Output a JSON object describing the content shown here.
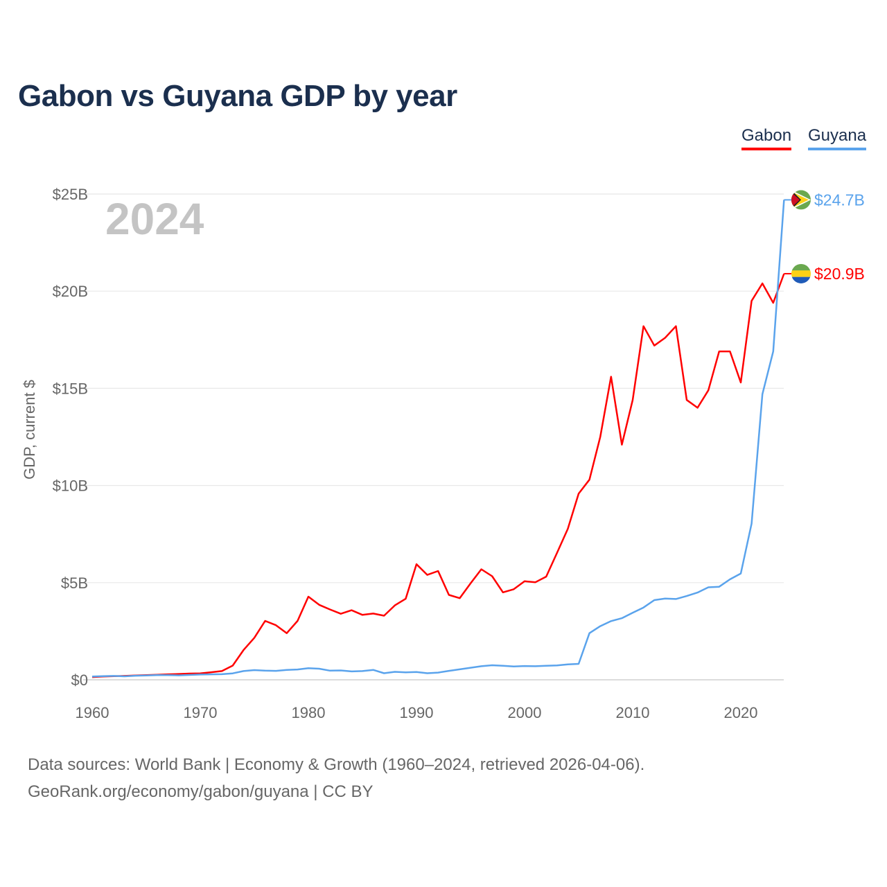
{
  "title": "Gabon vs Guyana GDP by year",
  "chart_data": {
    "type": "line",
    "title": "Gabon vs Guyana GDP by year",
    "xlabel": "",
    "ylabel": "GDP, current $",
    "xlim": [
      1960,
      2024
    ],
    "ylim": [
      0,
      25
    ],
    "x_ticks": [
      "1960",
      "1970",
      "1980",
      "1990",
      "2000",
      "2010",
      "2020"
    ],
    "y_ticks": [
      "$0",
      "$5B",
      "$10B",
      "$15B",
      "$20B",
      "$25B"
    ],
    "grid": true,
    "legend_position": "top-right",
    "current_year_label": "2024",
    "x": [
      1960,
      1961,
      1962,
      1963,
      1964,
      1965,
      1966,
      1967,
      1968,
      1969,
      1970,
      1971,
      1972,
      1973,
      1974,
      1975,
      1976,
      1977,
      1978,
      1979,
      1980,
      1981,
      1982,
      1983,
      1984,
      1985,
      1986,
      1987,
      1988,
      1989,
      1990,
      1991,
      1992,
      1993,
      1994,
      1995,
      1996,
      1997,
      1998,
      1999,
      2000,
      2001,
      2002,
      2003,
      2004,
      2005,
      2006,
      2007,
      2008,
      2009,
      2010,
      2011,
      2012,
      2013,
      2014,
      2015,
      2016,
      2017,
      2018,
      2019,
      2020,
      2021,
      2022,
      2023,
      2024
    ],
    "series": [
      {
        "name": "Gabon",
        "color": "#ff0000",
        "end_label": "$20.9B",
        "values": [
          0.14,
          0.17,
          0.19,
          0.2,
          0.22,
          0.24,
          0.26,
          0.28,
          0.3,
          0.32,
          0.33,
          0.39,
          0.45,
          0.73,
          1.53,
          2.16,
          3.03,
          2.81,
          2.4,
          3.03,
          4.28,
          3.86,
          3.62,
          3.4,
          3.58,
          3.34,
          3.41,
          3.3,
          3.83,
          4.17,
          5.95,
          5.4,
          5.6,
          4.37,
          4.2,
          4.96,
          5.69,
          5.33,
          4.5,
          4.66,
          5.07,
          5.02,
          5.31,
          6.53,
          7.77,
          9.58,
          10.3,
          12.5,
          15.6,
          12.1,
          14.4,
          18.2,
          17.2,
          17.6,
          18.2,
          14.4,
          14.0,
          14.9,
          16.9,
          16.9,
          15.3,
          19.5,
          20.4,
          19.4,
          20.9
        ]
      },
      {
        "name": "Guyana",
        "color": "#5aa3ec",
        "end_label": "$24.7B",
        "values": [
          0.17,
          0.19,
          0.2,
          0.18,
          0.21,
          0.22,
          0.24,
          0.24,
          0.23,
          0.25,
          0.27,
          0.28,
          0.29,
          0.33,
          0.45,
          0.5,
          0.47,
          0.46,
          0.51,
          0.53,
          0.6,
          0.57,
          0.47,
          0.48,
          0.43,
          0.45,
          0.51,
          0.34,
          0.41,
          0.38,
          0.4,
          0.34,
          0.37,
          0.46,
          0.54,
          0.62,
          0.7,
          0.75,
          0.72,
          0.69,
          0.71,
          0.7,
          0.72,
          0.74,
          0.79,
          0.82,
          2.4,
          2.76,
          3.02,
          3.17,
          3.45,
          3.72,
          4.1,
          4.18,
          4.16,
          4.31,
          4.49,
          4.76,
          4.79,
          5.17,
          5.47,
          8.04,
          14.7,
          16.9,
          24.7
        ]
      }
    ]
  },
  "footer": {
    "line1": "Data sources: World Bank | Economy & Growth (1960–2024, retrieved 2026-04-06).",
    "line2": "GeoRank.org/economy/gabon/guyana | CC BY"
  }
}
